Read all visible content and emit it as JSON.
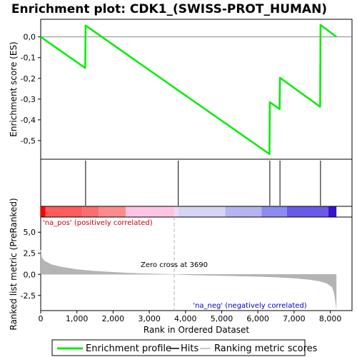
{
  "chart_data": {
    "type": "line",
    "title": "Enrichment plot: CDK1_(SWISS-PROT_HUMAN)",
    "xlabel": "Rank in Ordered Dataset",
    "ylabel_top": "Enrichment score (ES)",
    "ylabel_bottom": "Ranked list metric (PreRanked)",
    "xlim": [
      0,
      8600
    ],
    "x_ticks": [
      0,
      1000,
      2000,
      3000,
      4000,
      5000,
      6000,
      7000,
      8000
    ],
    "x_tick_labels": [
      "0",
      "1,000",
      "2,000",
      "3,000",
      "4,000",
      "5,000",
      "6,000",
      "7,000",
      "8,000"
    ],
    "es_ylim": [
      -0.59,
      0.085
    ],
    "es_ticks": [
      0.0,
      -0.1,
      -0.2,
      -0.3,
      -0.4,
      -0.5
    ],
    "es_tick_labels": [
      "0,0",
      "-0,1",
      "-0,2",
      "-0,3",
      "-0,4",
      "-0,5"
    ],
    "metric_ylim": [
      -4.3,
      6.8
    ],
    "metric_ticks": [
      5.0,
      2.5,
      0.0,
      -2.5
    ],
    "metric_tick_labels": [
      "5,0",
      "2,5",
      "0,0",
      "-2,5"
    ],
    "series": [
      {
        "name": "Enrichment profile",
        "color": "#00ee00",
        "x": [
          0,
          1230,
          1240,
          3800,
          6320,
          6330,
          6600,
          6610,
          7720,
          7730,
          8170
        ],
        "y": [
          0.0,
          -0.15,
          0.055,
          -0.258,
          -0.565,
          -0.315,
          -0.348,
          -0.197,
          -0.337,
          0.058,
          0.0
        ]
      }
    ],
    "hits": [
      1240,
      3800,
      6330,
      6610,
      7730
    ],
    "ranking_metric": {
      "x": [
        0,
        30,
        100,
        300,
        600,
        1000,
        1500,
        2000,
        2500,
        3000,
        3690,
        4200,
        5000,
        6000,
        6500,
        7000,
        7400,
        7700,
        7900,
        8050,
        8100,
        8130,
        8150,
        8165
      ],
      "y": [
        2.9,
        2.0,
        1.6,
        1.15,
        0.85,
        0.58,
        0.38,
        0.25,
        0.14,
        0.07,
        0.0,
        -0.07,
        -0.15,
        -0.25,
        -0.33,
        -0.45,
        -0.6,
        -0.8,
        -1.05,
        -1.5,
        -2.1,
        -2.8,
        -3.4,
        -4.0
      ]
    },
    "color_bar": [
      {
        "from": 0,
        "to": 130,
        "color": "#ff0000"
      },
      {
        "from": 130,
        "to": 1150,
        "color": "#ff5c5c"
      },
      {
        "from": 1150,
        "to": 1600,
        "color": "#ff6e6e"
      },
      {
        "from": 1600,
        "to": 2350,
        "color": "#ff8c8c"
      },
      {
        "from": 2350,
        "to": 3690,
        "color": "#ffc4e4"
      },
      {
        "from": 3690,
        "to": 3800,
        "color": "#f0d8f4"
      },
      {
        "from": 3800,
        "to": 5100,
        "color": "#d4d4f4"
      },
      {
        "from": 5100,
        "to": 6100,
        "color": "#b4b4f2"
      },
      {
        "from": 6100,
        "to": 6800,
        "color": "#8c8cf0"
      },
      {
        "from": 6800,
        "to": 7950,
        "color": "#6a5ae8"
      },
      {
        "from": 7950,
        "to": 8170,
        "color": "#3a10c8"
      }
    ],
    "zero_cross": 3690,
    "annotations": {
      "pos_label": "'na_pos' (positively correlated)",
      "neg_label": "'na_neg' (negatively correlated)",
      "zero_cross_label": "Zero cross at 3690"
    },
    "legend": {
      "placement": "bottom",
      "items": [
        {
          "label": "Enrichment profile",
          "color": "#00ee00"
        },
        {
          "label": "Hits",
          "color": "#000000"
        },
        {
          "label": "Ranking metric scores",
          "color": "#b4b4b4"
        }
      ]
    },
    "colors": {
      "pos_text": "#cc0000",
      "neg_text": "#0000cc",
      "metric_fill": "#b4b4b4",
      "zero_line": "#b4b4b4"
    }
  }
}
